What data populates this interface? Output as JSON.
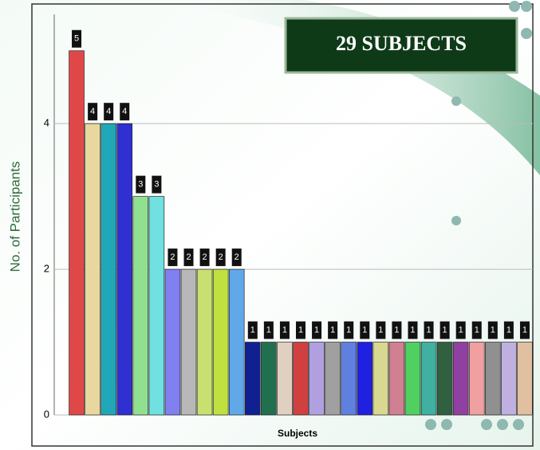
{
  "chart_data": {
    "type": "bar",
    "title": "29 SUBJECTS",
    "ylabel": "No. of Participants",
    "xlabel": "Subjects",
    "categories": [
      null,
      null,
      null,
      null,
      null,
      null,
      null,
      null,
      null,
      null,
      null,
      null,
      null,
      null,
      null,
      null,
      null,
      null,
      null,
      null,
      null,
      null,
      null,
      null,
      null,
      null,
      null,
      null,
      null
    ],
    "values": [
      5,
      4,
      4,
      4,
      3,
      3,
      2,
      2,
      2,
      2,
      2,
      1,
      1,
      1,
      1,
      1,
      1,
      1,
      1,
      1,
      1,
      1,
      1,
      1,
      1,
      1,
      1,
      1,
      1
    ],
    "colors": [
      "#e04848",
      "#e8d8a0",
      "#20a8b8",
      "#3030d0",
      "#90e090",
      "#70e0e0",
      "#8080f0",
      "#b8b8b8",
      "#c8e070",
      "#c0e040",
      "#60a8e8",
      "#102090",
      "#207050",
      "#e0d0c0",
      "#d04040",
      "#b0a0e0",
      "#a0a0a0",
      "#6080e0",
      "#2020e0",
      "#d8d890",
      "#d08090",
      "#50d060",
      "#40b0a0",
      "#306040",
      "#9040a0",
      "#f0a0a0",
      "#909090",
      "#c0b0e0",
      "#e0c0a0"
    ],
    "ylim": [
      0,
      5.5
    ],
    "yticks": [
      0,
      2,
      4
    ],
    "grid": true
  }
}
